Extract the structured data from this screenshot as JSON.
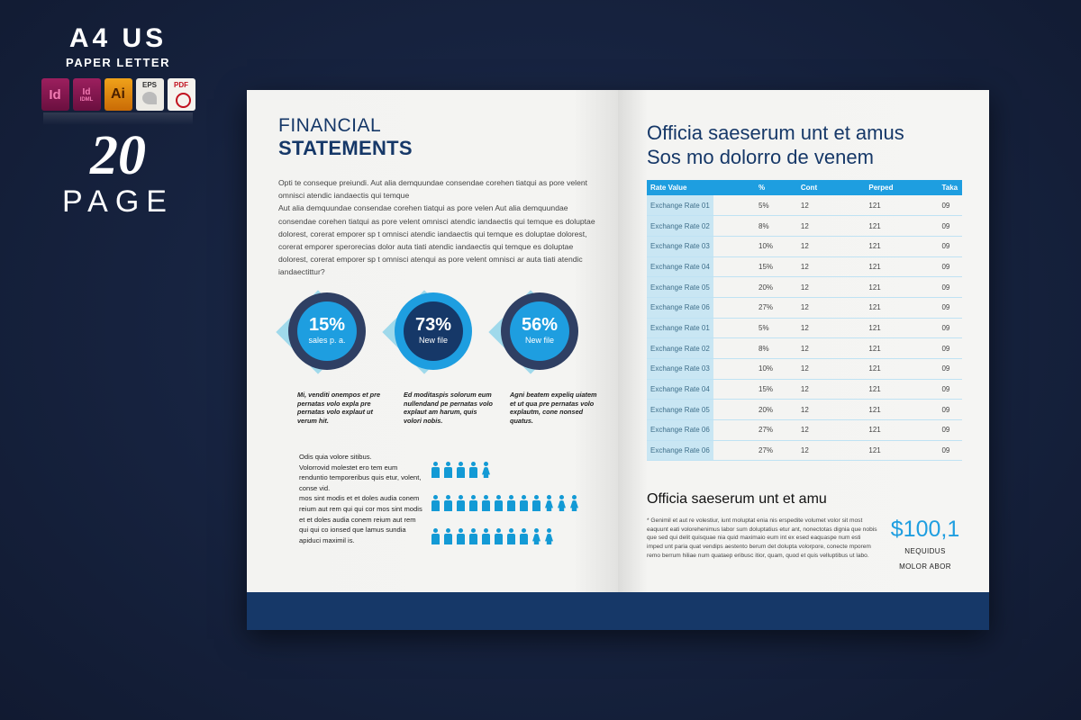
{
  "promo": {
    "title": "A4 US",
    "subtitle": "PAPER LETTER",
    "file_icons": [
      {
        "name": "indesign-icon",
        "label": "Id"
      },
      {
        "name": "idml-icon",
        "label": "Id",
        "tag": "IDML"
      },
      {
        "name": "illustrator-icon",
        "label": "Ai"
      },
      {
        "name": "eps-icon",
        "label": "EPS"
      },
      {
        "name": "pdf-icon",
        "label": "PDF"
      }
    ],
    "page_count": "20",
    "page_label": "PAGE"
  },
  "left_page": {
    "title_light": "FINANCIAL",
    "title_bold": "STATEMENTS",
    "intro_p1": "Opti te conseque preiundi.  Aut alia demquundae consendae corehen tiatqui as pore velent omnisci atendic iandaectis qui temque",
    "intro_p2": "Aut alia demquundae consendae corehen tiatqui as pore velen Aut alia demquundae consendae corehen tiatqui as pore velent omnisci atendic iandaectis qui temque es doluptae dolorest, corerat emporer sp t omnisci atendic iandaectis qui temque es doluptae dolorest, corerat emporer sperorecias dolor auta tiati atendic iandaectis qui temque es doluptae dolorest, corerat emporer sp t omnisci atenqui as pore velent omnisci ar auta tiati atendic iandaectittur?",
    "infographics": [
      {
        "value": "15%",
        "label": "sales p. a.",
        "caption": "Mi, venditi onempos et pre pernatas volo expla pre pernatas volo explaut ut verum hit.",
        "ring_color": "#2f3f63",
        "core_color": "#1e9ee0"
      },
      {
        "value": "73%",
        "label": "New file",
        "caption": "Ed moditaspis solorum eum nullendand pe pernatas volo explaut am harum, quis volori nobis.",
        "ring_color": "#1e9ee0",
        "core_color": "#163868"
      },
      {
        "value": "56%",
        "label": "New file",
        "caption": "Agni beatem expeliq uiatem et ut qua pre pernatas volo explautm, cone nonsed quatus.",
        "ring_color": "#2f3f63",
        "core_color": "#1e9ee0"
      }
    ],
    "people_text": "Odis quia volore sitibus.\nVolorrovid molestet ero tem eum renduntio temporeribus quis etur, volent, conse vid.\n mos sint modis et et doles audia conem reium aut rem qui qui cor mos sint modis et et doles audia conem reium aut rem qui qui co ionsed que lamus sundia apiduci maximil is.",
    "people_rows": [
      5,
      12,
      10
    ]
  },
  "right_page": {
    "title_line1": "Officia saeserum unt et amus",
    "title_line2": "Sos mo dolorro de venem",
    "table": {
      "headers": [
        "Rate Value",
        "%",
        "Cont",
        "Perped",
        "Taka"
      ],
      "rows": [
        [
          "Exchange Rate 01",
          "5%",
          "12",
          "121",
          "09"
        ],
        [
          "Exchange Rate 02",
          "8%",
          "12",
          "121",
          "09"
        ],
        [
          "Exchange Rate 03",
          "10%",
          "12",
          "121",
          "09"
        ],
        [
          "Exchange Rate 04",
          "15%",
          "12",
          "121",
          "09"
        ],
        [
          "Exchange Rate 05",
          "20%",
          "12",
          "121",
          "09"
        ],
        [
          "Exchange Rate 06",
          "27%",
          "12",
          "121",
          "09"
        ],
        [
          "Exchange Rate 01",
          "5%",
          "12",
          "121",
          "09"
        ],
        [
          "Exchange Rate 02",
          "8%",
          "12",
          "121",
          "09"
        ],
        [
          "Exchange Rate 03",
          "10%",
          "12",
          "121",
          "09"
        ],
        [
          "Exchange Rate 04",
          "15%",
          "12",
          "121",
          "09"
        ],
        [
          "Exchange Rate 05",
          "20%",
          "12",
          "121",
          "09"
        ],
        [
          "Exchange Rate 06",
          "27%",
          "12",
          "121",
          "09"
        ],
        [
          "Exchange Rate 06",
          "27%",
          "12",
          "121",
          "09"
        ]
      ]
    },
    "subtitle": "Officia saeserum unt et amu",
    "note": "* Genimil et aut re volestiur, iunt moluptat enia nis erspedite volumet volor sit most eaquunt eati volorehenimus labor sum doluptatius etur ant, nonectotas dignia que nobis que sed qui delit quisquae nia quid maximaio eum int ex esed eaquaspe num esti imped unt paria quat vendips aestento berum det dolupta volorpore, conecte mporem remo berrum hiliae num quataep eribusc itior, quam, quod et quis velluptibus ut labo.",
    "price": "$100,1",
    "price_line1": "NEQUIDUS",
    "price_line2": "MOLOR ABOR"
  },
  "colors": {
    "background": "#16223e",
    "navy": "#163868",
    "accent_blue": "#1e9ee0",
    "light_blue": "#8fd3ea",
    "table_tint": "#c9e6f3"
  }
}
